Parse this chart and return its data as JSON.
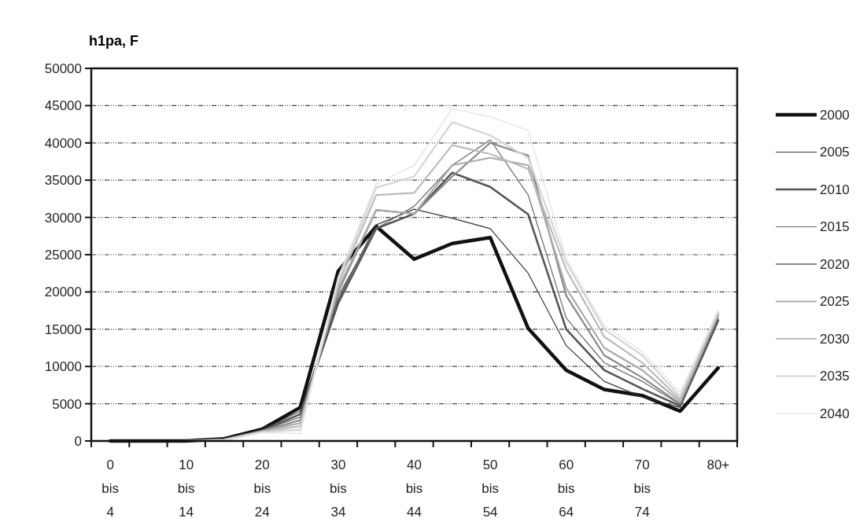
{
  "chart_data": {
    "type": "line",
    "title": "h1pa, F",
    "categories": [
      "0 bis 4",
      null,
      "10 bis 14",
      null,
      "20 bis 24",
      null,
      "30 bis 34",
      null,
      "40 bis 44",
      null,
      "50 bis 54",
      null,
      "60 bis 64",
      null,
      "70 bis 74",
      null,
      "80+"
    ],
    "ylim": [
      0,
      50000
    ],
    "yticks": [
      0,
      5000,
      10000,
      15000,
      20000,
      25000,
      30000,
      35000,
      40000,
      45000,
      50000
    ],
    "grid": "y",
    "legend": "right",
    "marker": "none",
    "line_style": "solid",
    "series": [
      {
        "name": "2000",
        "color": "#111111",
        "values": [
          0,
          0,
          0,
          300,
          1600,
          4500,
          22800,
          28800,
          24400,
          26500,
          27300,
          15100,
          9500,
          6900,
          6100,
          4000,
          9800
        ]
      },
      {
        "name": "2005",
        "color": "#333333",
        "values": [
          0,
          0,
          0,
          200,
          1500,
          4000,
          19000,
          29000,
          31100,
          29900,
          28500,
          22500,
          12800,
          8000,
          5900,
          4500,
          16000
        ]
      },
      {
        "name": "2010",
        "color": "#555555",
        "values": [
          0,
          0,
          0,
          200,
          1400,
          3600,
          18500,
          28500,
          30500,
          36000,
          34100,
          30400,
          15000,
          9500,
          7000,
          4700,
          16200
        ]
      },
      {
        "name": "2015",
        "color": "#666666",
        "values": [
          0,
          0,
          0,
          200,
          1400,
          3200,
          19500,
          28500,
          31500,
          37000,
          40400,
          33000,
          16500,
          10500,
          8000,
          4900,
          16500
        ]
      },
      {
        "name": "2020",
        "color": "#888888",
        "values": [
          0,
          0,
          0,
          200,
          1300,
          2800,
          20000,
          31000,
          30500,
          35500,
          40000,
          38300,
          19500,
          11500,
          8500,
          5000,
          16800
        ]
      },
      {
        "name": "2025",
        "color": "#aaaaaa",
        "values": [
          0,
          0,
          0,
          200,
          1300,
          2400,
          20500,
          31000,
          30500,
          37000,
          38000,
          37000,
          20500,
          12500,
          9500,
          5300,
          17000
        ]
      },
      {
        "name": "2030",
        "color": "#bbbbbb",
        "values": [
          0,
          0,
          0,
          100,
          1200,
          2000,
          21000,
          33000,
          33300,
          39700,
          38500,
          36500,
          23000,
          14000,
          10500,
          5600,
          17200
        ]
      },
      {
        "name": "2035",
        "color": "#d4d4d4",
        "values": [
          0,
          0,
          0,
          100,
          1200,
          1500,
          21500,
          34000,
          35500,
          42800,
          41000,
          38000,
          24000,
          15000,
          11500,
          6000,
          17400
        ]
      },
      {
        "name": "2040",
        "color": "#e8e8e8",
        "values": [
          0,
          0,
          0,
          100,
          1100,
          1000,
          22000,
          34500,
          37000,
          44600,
          43500,
          41700,
          24500,
          15500,
          12000,
          6500,
          17600
        ]
      }
    ]
  }
}
